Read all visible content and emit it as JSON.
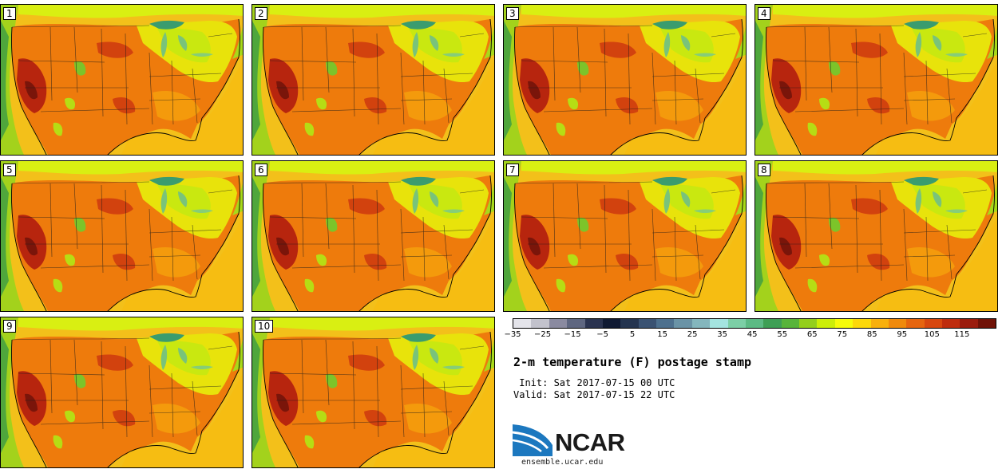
{
  "figure": {
    "title": "2-m temperature (F) postage stamp",
    "init_label": " Init: Sat 2017-07-15 00 UTC",
    "valid_label": "Valid: Sat 2017-07-15 22 UTC"
  },
  "panels": [
    {
      "member": "1"
    },
    {
      "member": "2"
    },
    {
      "member": "3"
    },
    {
      "member": "4"
    },
    {
      "member": "5"
    },
    {
      "member": "6"
    },
    {
      "member": "7"
    },
    {
      "member": "8"
    },
    {
      "member": "9"
    },
    {
      "member": "10"
    }
  ],
  "colorbar": {
    "colors": [
      "#e4e4ea",
      "#c2c2cc",
      "#8a8aa0",
      "#5e6680",
      "#2a3350",
      "#101a33",
      "#24344f",
      "#3a5272",
      "#4d708e",
      "#6a93a6",
      "#84b6bd",
      "#a4e4e0",
      "#7ccfa6",
      "#5cba84",
      "#3e9f55",
      "#58b43a",
      "#94cf1c",
      "#ccee08",
      "#f6fb0a",
      "#fcd80a",
      "#f8b00d",
      "#f08a0c",
      "#e6650f",
      "#d7470f",
      "#be2c0e",
      "#9b1c0d",
      "#701207"
    ],
    "tick_labels": [
      "-35",
      "-25",
      "-15",
      "-5",
      "5",
      "15",
      "25",
      "35",
      "45",
      "55",
      "65",
      "75",
      "85",
      "95",
      "105",
      "115"
    ]
  },
  "logo": {
    "text": "NCAR",
    "site": "ensemble.ucar.edu"
  }
}
